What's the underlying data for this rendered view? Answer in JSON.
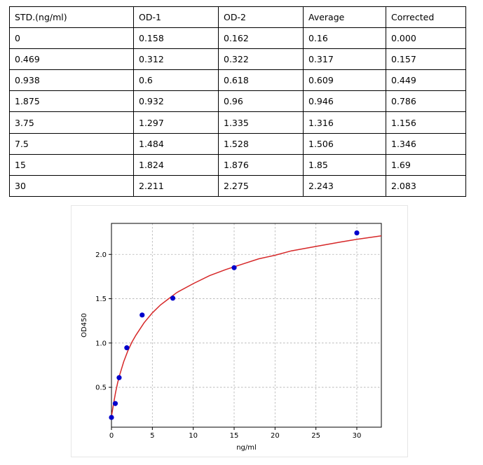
{
  "table": {
    "headers": [
      "STD.(ng/ml)",
      "OD-1",
      "OD-2",
      "Average",
      "Corrected"
    ],
    "rows": [
      [
        "0",
        "0.158",
        "0.162",
        "0.16",
        "0.000"
      ],
      [
        "0.469",
        "0.312",
        "0.322",
        "0.317",
        "0.157"
      ],
      [
        "0.938",
        "0.6",
        "0.618",
        "0.609",
        "0.449"
      ],
      [
        "1.875",
        "0.932",
        "0.96",
        "0.946",
        "0.786"
      ],
      [
        "3.75",
        "1.297",
        "1.335",
        "1.316",
        "1.156"
      ],
      [
        "7.5",
        "1.484",
        "1.528",
        "1.506",
        "1.346"
      ],
      [
        "15",
        "1.824",
        "1.876",
        "1.85",
        "1.69"
      ],
      [
        "30",
        "2.211",
        "2.275",
        "2.243",
        "2.083"
      ]
    ]
  },
  "chart_data": {
    "type": "scatter",
    "xlabel": "ng/ml",
    "ylabel": "OD450",
    "xlim": [
      0,
      33
    ],
    "ylim": [
      0.05,
      2.35
    ],
    "xticks": [
      0,
      5,
      10,
      15,
      20,
      25,
      30
    ],
    "yticks": [
      0.5,
      1.0,
      1.5,
      2.0
    ],
    "ytick_labels": [
      "0.5",
      "1.0",
      "1.5",
      "2.0"
    ],
    "grid": true,
    "series": [
      {
        "x": [
          0,
          0.469,
          0.938,
          1.875,
          3.75,
          7.5,
          15,
          30
        ],
        "y": [
          0.16,
          0.317,
          0.609,
          0.946,
          1.316,
          1.506,
          1.85,
          2.243
        ],
        "color": "#0000cc"
      }
    ],
    "fit_curve": {
      "color": "#d62728",
      "x": [
        0,
        0.25,
        0.5,
        0.75,
        1,
        1.5,
        2,
        2.5,
        3,
        4,
        5,
        6,
        7,
        8,
        10,
        12,
        14,
        16,
        18,
        20,
        22,
        25,
        28,
        30,
        33
      ],
      "y": [
        0.17,
        0.31,
        0.44,
        0.55,
        0.64,
        0.79,
        0.91,
        1.01,
        1.09,
        1.23,
        1.34,
        1.43,
        1.5,
        1.57,
        1.67,
        1.76,
        1.83,
        1.89,
        1.95,
        1.99,
        2.04,
        2.09,
        2.14,
        2.17,
        2.21
      ]
    }
  }
}
